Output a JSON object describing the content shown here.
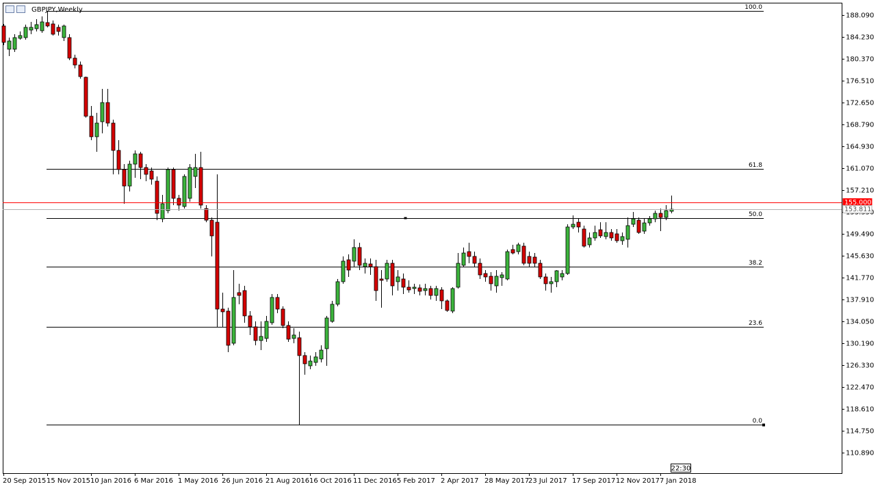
{
  "chart_data": {
    "type": "candlestick",
    "title": "GBPJPY,Weekly",
    "time_label": "22:30",
    "up_color": "#3cb43c",
    "down_color": "#d40000",
    "ylim": [
      107.27,
      190.26
    ],
    "yticks": [
      {
        "value": 188.09,
        "label": "188.090"
      },
      {
        "value": 184.23,
        "label": "184.230"
      },
      {
        "value": 180.37,
        "label": "180.370"
      },
      {
        "value": 176.51,
        "label": "176.510"
      },
      {
        "value": 172.65,
        "label": "172.650"
      },
      {
        "value": 168.79,
        "label": "168.790"
      },
      {
        "value": 164.93,
        "label": "164.930"
      },
      {
        "value": 161.07,
        "label": "161.070"
      },
      {
        "value": 157.21,
        "label": "157.210"
      },
      {
        "value": 153.35,
        "label": "153.350"
      },
      {
        "value": 149.49,
        "label": "149.490"
      },
      {
        "value": 145.63,
        "label": "145.630"
      },
      {
        "value": 141.77,
        "label": "141.770"
      },
      {
        "value": 137.91,
        "label": "137.910"
      },
      {
        "value": 134.05,
        "label": "134.050"
      },
      {
        "value": 130.19,
        "label": "130.190"
      },
      {
        "value": 126.33,
        "label": "126.330"
      },
      {
        "value": 122.47,
        "label": "122.470"
      },
      {
        "value": 118.61,
        "label": "118.610"
      },
      {
        "value": 114.75,
        "label": "114.750"
      },
      {
        "value": 110.89,
        "label": "110.890"
      }
    ],
    "price_lines": [
      {
        "value": 155.0,
        "label": "155.000",
        "color": "#ff0000"
      },
      {
        "value": 153.811,
        "label": "153.811",
        "color": "#b0b0b0"
      }
    ],
    "fibonacci": {
      "color": "#000000",
      "levels": [
        {
          "label": "100.0",
          "price": 188.81
        },
        {
          "label": "61.8",
          "price": 160.95
        },
        {
          "label": "50.0",
          "price": 152.27
        },
        {
          "label": "38.2",
          "price": 143.7
        },
        {
          "label": "23.6",
          "price": 133.09
        },
        {
          "label": "0.0",
          "price": 115.84
        }
      ]
    },
    "categories": [
      "20 Sep 2015",
      null,
      null,
      null,
      null,
      null,
      null,
      null,
      "15 Nov 2015",
      null,
      null,
      null,
      null,
      null,
      null,
      null,
      "10 Jan 2016",
      null,
      null,
      null,
      null,
      null,
      null,
      null,
      "6 Mar 2016",
      null,
      null,
      null,
      null,
      null,
      null,
      null,
      "1 May 2016",
      null,
      null,
      null,
      null,
      null,
      null,
      null,
      "26 Jun 2016",
      null,
      null,
      null,
      null,
      null,
      null,
      null,
      "21 Aug 2016",
      null,
      null,
      null,
      null,
      null,
      null,
      null,
      "16 Oct 2016",
      null,
      null,
      null,
      null,
      null,
      null,
      null,
      "11 Dec 2016",
      null,
      null,
      null,
      null,
      null,
      null,
      null,
      "5 Feb 2017",
      null,
      null,
      null,
      null,
      null,
      null,
      null,
      "2 Apr 2017",
      null,
      null,
      null,
      null,
      null,
      null,
      null,
      "28 May 2017",
      null,
      null,
      null,
      null,
      null,
      null,
      null,
      "23 Jul 2017",
      null,
      null,
      null,
      null,
      null,
      null,
      null,
      "17 Sep 2017",
      null,
      null,
      null,
      null,
      null,
      null,
      null,
      "12 Nov 2017",
      null,
      null,
      null,
      null,
      null,
      null,
      null,
      "7 Jan 2018",
      null,
      null
    ],
    "open": [
      186.16,
      182.06,
      182.06,
      183.99,
      184.11,
      185.44,
      185.68,
      185.32,
      186.76,
      186.52,
      185.92,
      184.11,
      184.11,
      180.49,
      179.28,
      177.11,
      170.24,
      166.62,
      169.27,
      172.65,
      169.03,
      164.21,
      160.83,
      157.93,
      161.79,
      163.6,
      161.19,
      160.59,
      158.78,
      152.14,
      153.59,
      160.83,
      155.76,
      154.32,
      155.76,
      159.62,
      161.19,
      153.95,
      151.9,
      151.54,
      136.22,
      135.86,
      130.19,
      139.12,
      139.48,
      135.02,
      133.09,
      130.67,
      131.04,
      133.81,
      138.27,
      136.22,
      133.33,
      131.04,
      131.16,
      128.02,
      126.21,
      126.81,
      127.42,
      129.23,
      134.05,
      137.07,
      141.05,
      144.91,
      144.67,
      147.08,
      143.7,
      144.18,
      143.7,
      141.53,
      141.53,
      144.3,
      141.05,
      141.53,
      140.08,
      139.84,
      139.96,
      139.48,
      139.84,
      138.63,
      139.6,
      137.67,
      135.86,
      140.08,
      143.94,
      146.35,
      145.51,
      144.3,
      142.49,
      142.01,
      140.32,
      141.77,
      141.53,
      146.72,
      146.35,
      147.32,
      145.51,
      145.39,
      144.3,
      141.89,
      140.69,
      141.05,
      141.89,
      142.49,
      150.7,
      151.54,
      150.34,
      147.56,
      148.77,
      150.21,
      149.01,
      149.73,
      149.49,
      148.28,
      148.53,
      151.18,
      151.9,
      149.97,
      151.42,
      152.14,
      153.11,
      152.39,
      153.47
    ],
    "high": [
      186.52,
      184.11,
      184.71,
      185.2,
      186.4,
      186.88,
      187.37,
      187.85,
      188.81,
      187.13,
      186.4,
      186.4,
      184.71,
      181.09,
      179.89,
      177.23,
      172.05,
      170.84,
      175.06,
      175.06,
      169.63,
      166.02,
      161.79,
      162.4,
      164.21,
      163.97,
      161.79,
      161.19,
      159.62,
      156.37,
      161.19,
      161.19,
      156.37,
      159.99,
      161.79,
      163.6,
      163.97,
      154.56,
      152.39,
      159.99,
      139.12,
      136.46,
      143.1,
      140.69,
      140.32,
      135.86,
      134.05,
      134.05,
      135.02,
      138.88,
      138.88,
      136.7,
      134.05,
      132.84,
      132.24,
      128.62,
      128.02,
      128.62,
      129.83,
      135.02,
      137.67,
      141.53,
      145.51,
      145.87,
      148.53,
      147.92,
      145.15,
      145.15,
      144.91,
      143.1,
      144.91,
      144.91,
      143.1,
      142.49,
      141.29,
      140.69,
      140.56,
      140.69,
      140.32,
      140.32,
      140.08,
      137.91,
      140.08,
      146.11,
      147.08,
      147.92,
      146.35,
      145.15,
      143.1,
      142.74,
      143.1,
      142.74,
      146.72,
      147.56,
      147.92,
      147.92,
      146.35,
      146.11,
      144.91,
      142.49,
      141.89,
      143.1,
      143.1,
      151.18,
      152.75,
      152.14,
      150.94,
      149.73,
      150.94,
      151.54,
      151.54,
      150.34,
      150.34,
      149.73,
      152.39,
      153.35,
      152.39,
      152.14,
      152.63,
      153.59,
      153.95,
      154.56,
      156.25
    ],
    "low": [
      182.78,
      180.85,
      181.58,
      183.75,
      183.75,
      184.71,
      185.2,
      184.95,
      185.92,
      184.47,
      184.47,
      183.51,
      180.13,
      178.68,
      176.87,
      170.0,
      166.02,
      163.97,
      167.22,
      168.43,
      159.99,
      159.99,
      154.8,
      156.97,
      159.38,
      159.14,
      158.78,
      158.18,
      151.9,
      151.54,
      153.11,
      154.56,
      153.59,
      153.95,
      155.16,
      157.57,
      153.95,
      151.54,
      145.51,
      133.09,
      133.09,
      128.62,
      129.83,
      137.07,
      133.81,
      131.64,
      129.83,
      128.98,
      130.43,
      133.45,
      135.5,
      132.84,
      130.43,
      130.19,
      115.84,
      124.64,
      125.61,
      126.21,
      126.81,
      126.21,
      133.81,
      136.7,
      140.69,
      141.89,
      143.7,
      143.1,
      142.49,
      142.25,
      137.67,
      136.46,
      141.05,
      138.63,
      139.48,
      138.88,
      139.12,
      138.88,
      138.63,
      138.63,
      137.91,
      137.67,
      136.22,
      135.74,
      135.5,
      139.84,
      143.7,
      144.3,
      143.7,
      141.53,
      141.05,
      139.48,
      139.12,
      140.32,
      141.29,
      145.87,
      145.87,
      143.94,
      143.7,
      143.7,
      141.53,
      139.48,
      139.12,
      140.08,
      141.29,
      142.25,
      150.34,
      149.73,
      147.08,
      147.08,
      148.28,
      148.77,
      148.53,
      148.28,
      147.92,
      147.56,
      147.08,
      150.7,
      149.49,
      149.49,
      150.94,
      151.54,
      149.97,
      151.9,
      153.11
    ],
    "close": [
      183.27,
      183.51,
      184.11,
      184.47,
      185.92,
      185.92,
      186.4,
      186.88,
      186.16,
      184.71,
      185.2,
      186.16,
      180.49,
      179.28,
      177.23,
      170.24,
      166.62,
      169.03,
      172.65,
      169.03,
      164.21,
      160.83,
      157.93,
      161.79,
      163.6,
      161.19,
      159.99,
      159.14,
      153.11,
      154.8,
      160.83,
      155.76,
      154.56,
      159.62,
      161.19,
      161.19,
      154.56,
      151.9,
      149.13,
      136.22,
      135.74,
      129.83,
      138.27,
      138.63,
      135.02,
      133.09,
      130.67,
      131.4,
      134.05,
      138.27,
      136.22,
      133.33,
      130.91,
      131.64,
      128.02,
      126.57,
      127.05,
      127.78,
      128.98,
      134.65,
      137.07,
      141.05,
      144.67,
      143.1,
      147.08,
      143.94,
      144.3,
      143.7,
      139.48,
      141.29,
      144.3,
      140.32,
      141.89,
      140.08,
      139.6,
      140.08,
      139.36,
      139.84,
      138.63,
      139.84,
      137.67,
      135.98,
      139.84,
      144.3,
      146.11,
      145.51,
      144.3,
      142.25,
      141.89,
      140.69,
      142.01,
      142.25,
      146.35,
      146.11,
      147.56,
      144.3,
      144.3,
      144.3,
      141.89,
      140.69,
      141.05,
      142.98,
      142.49,
      150.7,
      151.18,
      150.7,
      147.32,
      148.77,
      149.73,
      149.13,
      149.73,
      148.77,
      148.28,
      149.01,
      150.94,
      152.14,
      149.73,
      151.42,
      152.14,
      153.11,
      152.39,
      153.59,
      153.83
    ]
  }
}
